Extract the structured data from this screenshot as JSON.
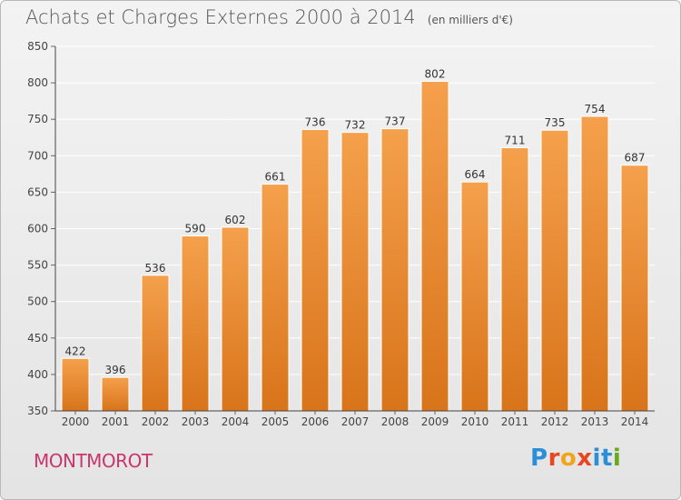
{
  "header": {
    "title": "Achats et Charges Externes 2000 à 2014",
    "subtitle": "(en milliers d'€)"
  },
  "footer": {
    "commune": "MONTMOROT",
    "logo": "Proxiti"
  },
  "colors": {
    "bar_top": "#f5a04c",
    "bar_bottom": "#d8741a",
    "title": "#555555",
    "commune": "#c8366b",
    "logo_letters": [
      "#2a8fd6",
      "#e8461f",
      "#f0a51a",
      "#e8461f",
      "#2a8fd6",
      "#2a8fd6",
      "#69a81f"
    ]
  },
  "chart_data": {
    "type": "bar",
    "title": "Achats et Charges Externes 2000 à 2014",
    "subtitle": "(en milliers d'€)",
    "categories": [
      "2000",
      "2001",
      "2002",
      "2003",
      "2004",
      "2005",
      "2006",
      "2007",
      "2008",
      "2009",
      "2010",
      "2011",
      "2012",
      "2013",
      "2014"
    ],
    "values": [
      422,
      396,
      536,
      590,
      602,
      661,
      736,
      732,
      737,
      802,
      664,
      711,
      735,
      754,
      687
    ],
    "ylim": [
      350,
      850
    ],
    "yticks": [
      350,
      400,
      450,
      500,
      550,
      600,
      650,
      700,
      750,
      800,
      850
    ],
    "grid": true,
    "xlabel": "",
    "ylabel": ""
  }
}
